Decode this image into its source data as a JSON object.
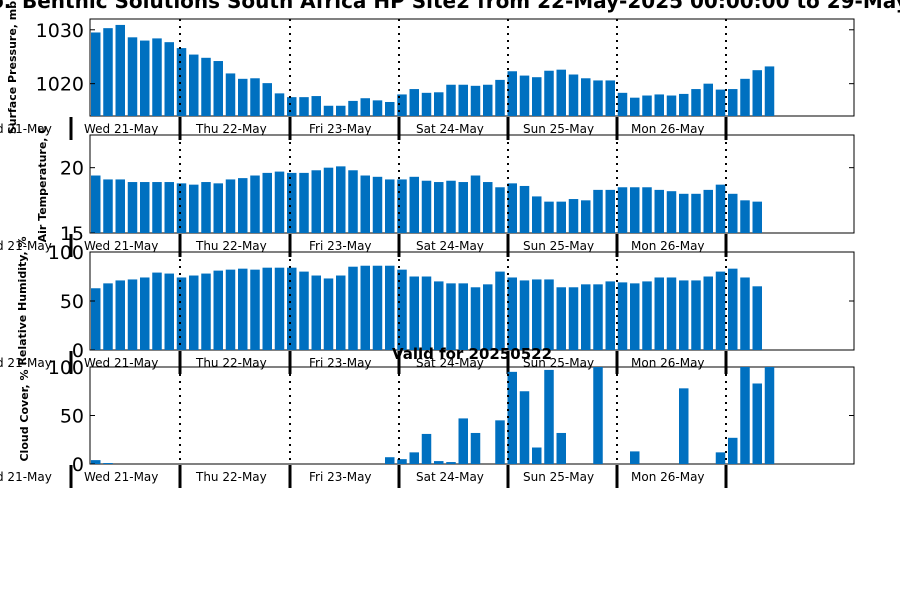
{
  "title": "Benthic Solutions South Africa HP Site2 from 22-May-2025 00:00:00 to 29-May",
  "title_prefix": "o.",
  "subtitle": "Valid for 20250522",
  "bar_color": "#0070c0",
  "chart_data": [
    {
      "type": "bar",
      "ylabel": "Surface Pressure, mb",
      "ylim": [
        1014,
        1032
      ],
      "yticks": [
        1020,
        1030
      ],
      "day_labels": [
        "d 21-May",
        "Wed 21-May",
        "Thu 22-May",
        "Fri 23-May",
        "Sat 24-May",
        "Sun 25-May",
        "Mon 26-May"
      ],
      "values": [
        1029.5,
        1030.3,
        1030.9,
        1028.6,
        1028.0,
        1028.4,
        1027.7,
        1026.6,
        1025.4,
        1024.8,
        1024.2,
        1021.9,
        1020.9,
        1021.0,
        1020.1,
        1018.2,
        1017.5,
        1017.5,
        1017.7,
        1015.9,
        1015.9,
        1016.8,
        1017.3,
        1016.9,
        1016.6,
        1018.0,
        1019.0,
        1018.3,
        1018.4,
        1019.8,
        1019.8,
        1019.6,
        1019.8,
        1020.7,
        1022.3,
        1021.5,
        1021.2,
        1022.4,
        1022.6,
        1021.7,
        1021.0,
        1020.6,
        1020.6,
        1018.3,
        1017.4,
        1017.8,
        1018.0,
        1017.8,
        1018.1,
        1019.0,
        1020.0,
        1018.9,
        1019.0,
        1020.9,
        1022.5,
        1023.2
      ]
    },
    {
      "type": "bar",
      "ylabel": "Air Temperature, C",
      "ylim": [
        15,
        22.5
      ],
      "yticks": [
        15,
        20
      ],
      "day_labels": [
        "d 21-May",
        "Wed 21-May",
        "Thu 22-May",
        "Fri 23-May",
        "Sat 24-May",
        "Sun 25-May",
        "Mon 26-May"
      ],
      "values": [
        19.4,
        19.1,
        19.1,
        18.9,
        18.9,
        18.9,
        18.9,
        18.8,
        18.7,
        18.9,
        18.8,
        19.1,
        19.2,
        19.4,
        19.6,
        19.7,
        19.6,
        19.6,
        19.8,
        20.0,
        20.1,
        19.8,
        19.4,
        19.3,
        19.1,
        19.1,
        19.3,
        19.0,
        18.9,
        19.0,
        18.9,
        19.4,
        18.9,
        18.5,
        18.8,
        18.6,
        17.8,
        17.4,
        17.4,
        17.6,
        17.5,
        18.3,
        18.3,
        18.5,
        18.5,
        18.5,
        18.3,
        18.2,
        18.0,
        18.0,
        18.3,
        18.7,
        18.0,
        17.5,
        17.4
      ]
    },
    {
      "type": "bar",
      "ylabel": "Relative Humidity, %",
      "ylim": [
        0,
        100
      ],
      "yticks": [
        0,
        50,
        100
      ],
      "day_labels": [
        "d 21-May",
        "Wed 21-May",
        "Thu 22-May",
        "Fri 23-May",
        "Sat 24-May",
        "Sun 25-May",
        "Mon 26-May"
      ],
      "values": [
        63,
        68,
        71,
        72,
        74,
        79,
        78,
        74,
        76,
        78,
        81,
        82,
        83,
        82,
        84,
        84,
        84,
        80,
        76,
        73,
        76,
        85,
        86,
        86,
        86,
        82,
        75,
        75,
        70,
        68,
        68,
        64,
        67,
        80,
        74,
        71,
        72,
        72,
        64,
        64,
        67,
        67,
        70,
        69,
        68,
        70,
        74,
        74,
        71,
        71,
        75,
        80,
        83,
        74,
        65
      ]
    },
    {
      "type": "bar",
      "ylabel": "Cloud Cover, %",
      "ylim": [
        0,
        100
      ],
      "yticks": [
        0,
        50,
        100
      ],
      "day_labels": [
        "d 21-May",
        "Wed 21-May",
        "Thu 22-May",
        "Fri 23-May",
        "Sat 24-May",
        "Sun 25-May",
        "Mon 26-May"
      ],
      "values": [
        4,
        1,
        0,
        0,
        0,
        0,
        0,
        0,
        0,
        0,
        0,
        0,
        0,
        0,
        0,
        0,
        0,
        0,
        0,
        0,
        0,
        0,
        0,
        0,
        7,
        5,
        12,
        31,
        3,
        2,
        47,
        32,
        0,
        45,
        95,
        75,
        17,
        97,
        32,
        0,
        0,
        100,
        0,
        0,
        13,
        0,
        0,
        0,
        78,
        0,
        0,
        12,
        27,
        100,
        83,
        100
      ]
    }
  ]
}
